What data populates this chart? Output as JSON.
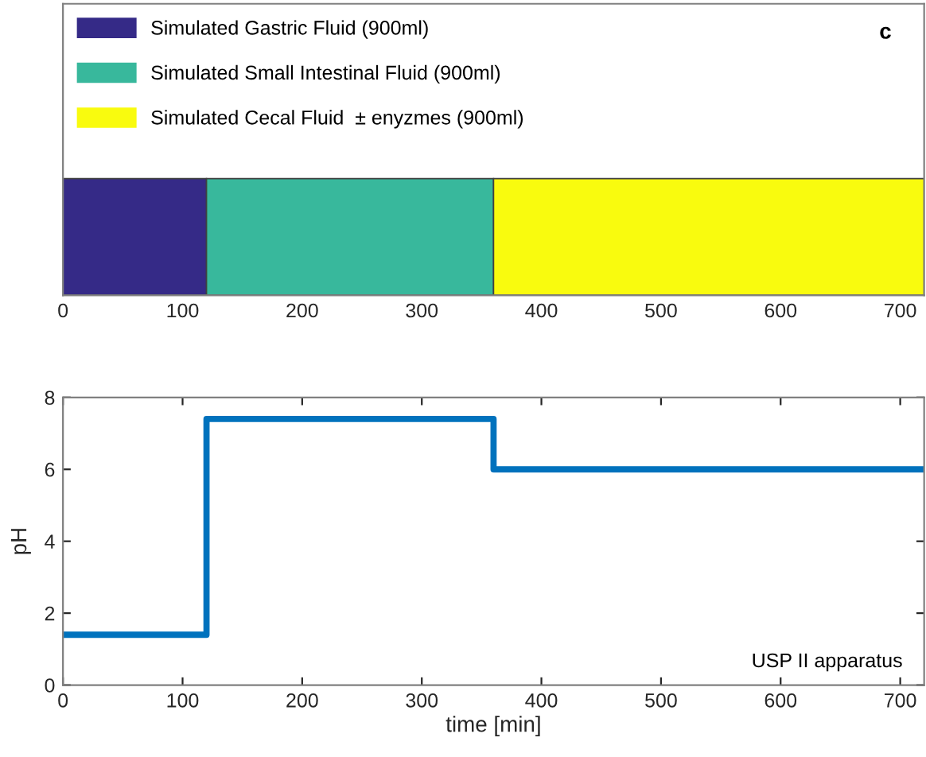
{
  "chart_data": [
    {
      "type": "bar",
      "orientation": "horizontal",
      "stacked": true,
      "categories": [
        null
      ],
      "series": [
        {
          "name": "Simulated Gastric Fluid (900ml)",
          "color": "#352a87",
          "values": [
            120
          ]
        },
        {
          "name": "Simulated Small Intestinal Fluid (900ml)",
          "color": "#38b89c",
          "values": [
            240
          ]
        },
        {
          "name": "Simulated Cecal Fluid  ± enyzmes (900ml)",
          "color": "#f9fb0e",
          "values": [
            360
          ]
        }
      ],
      "xlim": [
        0,
        720
      ],
      "xticks": [
        0,
        100,
        200,
        300,
        400,
        500,
        600,
        700
      ],
      "legend": "top left",
      "tick_labels": "x",
      "annotations": [
        "c"
      ]
    },
    {
      "type": "step",
      "x": [
        0,
        120,
        360,
        720
      ],
      "series": [
        {
          "color": "#0072bd",
          "values": [
            1.4,
            7.4,
            6,
            6
          ]
        }
      ],
      "xlim": [
        0,
        720
      ],
      "xticks": [
        0,
        100,
        200,
        300,
        400,
        500,
        600,
        700
      ],
      "ylim": [
        0,
        8
      ],
      "yticks": [
        0,
        2,
        4,
        6,
        8
      ],
      "xlabel": "time [min]",
      "ylabel": "pH",
      "annotations": [
        "USP II apparatus"
      ]
    }
  ]
}
